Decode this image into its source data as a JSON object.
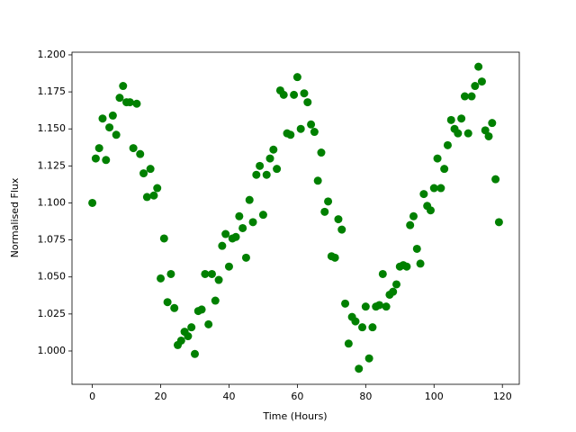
{
  "chart_data": {
    "type": "scatter",
    "x_label": "Time (Hours)",
    "y_label": "Normalised Flux",
    "color": "#008000",
    "x": [
      0,
      1,
      2,
      3,
      4,
      5,
      6,
      7,
      8,
      9,
      10,
      11,
      12,
      13,
      14,
      15,
      16,
      17,
      18,
      19,
      20,
      21,
      22,
      23,
      24,
      25,
      26,
      27,
      28,
      29,
      30,
      31,
      32,
      33,
      34,
      35,
      36,
      37,
      38,
      39,
      40,
      41,
      42,
      43,
      44,
      45,
      46,
      47,
      48,
      49,
      50,
      51,
      52,
      53,
      54,
      55,
      56,
      57,
      58,
      59,
      60,
      61,
      62,
      63,
      64,
      65,
      66,
      67,
      68,
      69,
      70,
      71,
      72,
      73,
      74,
      75,
      76,
      77,
      78,
      79,
      80,
      81,
      82,
      83,
      84,
      85,
      86,
      87,
      88,
      89,
      90,
      91,
      92,
      93,
      94,
      95,
      96,
      97,
      98,
      99,
      100,
      101,
      102,
      103,
      104,
      105,
      106,
      107,
      108,
      109,
      110,
      111,
      112,
      113,
      114,
      115,
      116,
      117,
      118,
      119
    ],
    "values": [
      1.1,
      1.13,
      1.137,
      1.157,
      1.129,
      1.151,
      1.159,
      1.146,
      1.171,
      1.179,
      1.168,
      1.168,
      1.137,
      1.167,
      1.133,
      1.12,
      1.104,
      1.123,
      1.105,
      1.11,
      1.049,
      1.076,
      1.033,
      1.052,
      1.029,
      1.004,
      1.007,
      1.013,
      1.01,
      1.016,
      0.998,
      1.027,
      1.028,
      1.052,
      1.018,
      1.052,
      1.034,
      1.048,
      1.071,
      1.079,
      1.057,
      1.076,
      1.077,
      1.091,
      1.083,
      1.063,
      1.102,
      1.087,
      1.119,
      1.125,
      1.092,
      1.119,
      1.13,
      1.136,
      1.123,
      1.176,
      1.173,
      1.147,
      1.146,
      1.173,
      1.185,
      1.15,
      1.174,
      1.168,
      1.153,
      1.148,
      1.115,
      1.134,
      1.094,
      1.101,
      1.064,
      1.063,
      1.089,
      1.082,
      1.032,
      1.005,
      1.023,
      1.02,
      0.988,
      1.016,
      1.03,
      0.995,
      1.016,
      1.03,
      1.031,
      1.052,
      1.03,
      1.038,
      1.04,
      1.045,
      1.057,
      1.058,
      1.057,
      1.085,
      1.091,
      1.069,
      1.059,
      1.106,
      1.098,
      1.095,
      1.11,
      1.13,
      1.11,
      1.123,
      1.139,
      1.156,
      1.15,
      1.147,
      1.157,
      1.172,
      1.147,
      1.172,
      1.179,
      1.192,
      1.182,
      1.149,
      1.145,
      1.154,
      1.116,
      1.087
    ],
    "xlim": [
      -5.95,
      124.95
    ],
    "ylim": [
      0.9775,
      1.2018
    ],
    "xticks": [
      0,
      20,
      40,
      60,
      80,
      100,
      120
    ],
    "yticks": [
      {
        "value": 1.0,
        "label": "1.000"
      },
      {
        "value": 1.025,
        "label": "1.025"
      },
      {
        "value": 1.05,
        "label": "1.050"
      },
      {
        "value": 1.075,
        "label": "1.075"
      },
      {
        "value": 1.1,
        "label": "1.100"
      },
      {
        "value": 1.125,
        "label": "1.125"
      },
      {
        "value": 1.15,
        "label": "1.150"
      },
      {
        "value": 1.175,
        "label": "1.175"
      },
      {
        "value": 1.2,
        "label": "1.200"
      }
    ]
  }
}
